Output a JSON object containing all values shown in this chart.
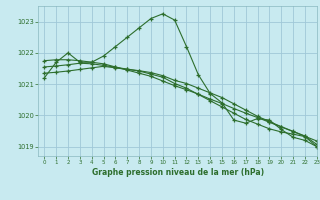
{
  "title": "Graphe pression niveau de la mer (hPa)",
  "bg_color": "#c8eaf0",
  "grid_color": "#a0c8d8",
  "line_color": "#2d6e2d",
  "xlim": [
    -0.5,
    23
  ],
  "ylim": [
    1018.7,
    1023.5
  ],
  "yticks": [
    1019,
    1020,
    1021,
    1022,
    1023
  ],
  "xticks": [
    0,
    1,
    2,
    3,
    4,
    5,
    6,
    7,
    8,
    9,
    10,
    11,
    12,
    13,
    14,
    15,
    16,
    17,
    18,
    19,
    20,
    21,
    22,
    23
  ],
  "series": [
    {
      "x": [
        0,
        1,
        2,
        3,
        4,
        5,
        6,
        7,
        8,
        9,
        10,
        11,
        12,
        13,
        14,
        15,
        16,
        17,
        18,
        19,
        20,
        21,
        22,
        23
      ],
      "y": [
        1021.2,
        1021.7,
        1022.0,
        1021.7,
        1021.7,
        1021.9,
        1022.2,
        1022.5,
        1022.8,
        1023.1,
        1023.25,
        1023.05,
        1022.2,
        1021.3,
        1020.7,
        1020.4,
        1019.85,
        1019.75,
        1019.9,
        1019.85,
        1019.55,
        1019.3,
        1019.2,
        1019.0
      ]
    },
    {
      "x": [
        0,
        1,
        2,
        3,
        4,
        5,
        6,
        7,
        8,
        9,
        10,
        11,
        12,
        13,
        14,
        15,
        16,
        17,
        18,
        19,
        20,
        21,
        22,
        23
      ],
      "y": [
        1021.75,
        1021.78,
        1021.78,
        1021.75,
        1021.7,
        1021.65,
        1021.55,
        1021.45,
        1021.35,
        1021.25,
        1021.1,
        1020.95,
        1020.82,
        1020.68,
        1020.52,
        1020.38,
        1020.22,
        1020.07,
        1019.93,
        1019.78,
        1019.63,
        1019.48,
        1019.33,
        1019.18
      ]
    },
    {
      "x": [
        0,
        1,
        2,
        3,
        4,
        5,
        6,
        7,
        8,
        9,
        10,
        11,
        12,
        13,
        14,
        15,
        16,
        17,
        18,
        19,
        20,
        21,
        22,
        23
      ],
      "y": [
        1021.55,
        1021.58,
        1021.62,
        1021.67,
        1021.65,
        1021.6,
        1021.54,
        1021.48,
        1021.43,
        1021.37,
        1021.27,
        1021.12,
        1021.02,
        1020.87,
        1020.72,
        1020.57,
        1020.37,
        1020.17,
        1019.97,
        1019.8,
        1019.64,
        1019.49,
        1019.34,
        1019.07
      ]
    },
    {
      "x": [
        0,
        1,
        2,
        3,
        4,
        5,
        6,
        7,
        8,
        9,
        10,
        11,
        12,
        13,
        14,
        15,
        16,
        17,
        18,
        19,
        20,
        21,
        22,
        23
      ],
      "y": [
        1021.35,
        1021.38,
        1021.42,
        1021.47,
        1021.52,
        1021.57,
        1021.52,
        1021.47,
        1021.42,
        1021.32,
        1021.22,
        1021.02,
        1020.87,
        1020.67,
        1020.47,
        1020.27,
        1020.07,
        1019.87,
        1019.72,
        1019.57,
        1019.47,
        1019.4,
        1019.32,
        1019.0
      ]
    }
  ]
}
